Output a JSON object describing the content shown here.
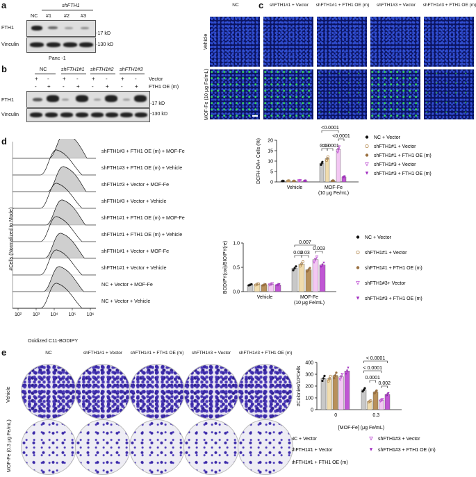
{
  "panel_a": {
    "label": "a",
    "header_shrna": "shFTH1",
    "lanes": [
      "NC",
      "#1",
      "#2",
      "#3"
    ],
    "rows": [
      "FTH1",
      "Vinculin"
    ],
    "markers": [
      "-17 kD",
      "-130 kD"
    ],
    "cell_line": "Panc -1"
  },
  "panel_b": {
    "label": "b",
    "groups": [
      "NC",
      "shFTH1#1",
      "shFTH1#2",
      "shFTH1#3"
    ],
    "vector_row": [
      "+",
      "-",
      "+",
      "-",
      "+",
      "-",
      "+",
      "-"
    ],
    "oe_row": [
      "-",
      "+",
      "-",
      "+",
      "-",
      "+",
      "-",
      "+"
    ],
    "row_labels": [
      "Vector",
      "FTH1 OE (m)"
    ],
    "rows": [
      "FTH1",
      "Vinculin"
    ],
    "markers": [
      "-17 kD",
      "-130 kD"
    ]
  },
  "panel_c": {
    "label": "c",
    "columns": [
      "NC",
      "shFTH1#1 + Vector",
      "shFTH1#1 + FTH1 OE (m)",
      "shFTH1#3 + Vector",
      "shFTH1#3 + FTH1 OE (m)"
    ],
    "rows": [
      "Vehicle",
      "MOF-Fe (10 μg Fe/mL)"
    ]
  },
  "dcfh_chart": {
    "chart_data": {
      "type": "bar",
      "categories": [
        "Vehicle",
        "MOF-Fe (10 μg Fe/mL)"
      ],
      "ylabel": "DCFH-DA+ Cells (%)",
      "ylim": [
        0,
        20
      ],
      "yticks": [
        "0",
        "5",
        "10",
        "15",
        "20"
      ],
      "series": [
        {
          "name": "NC + Vector",
          "values": [
            0.4,
            8.9
          ]
        },
        {
          "name": "shFTH1#1 + Vector",
          "values": [
            0.5,
            11.2
          ]
        },
        {
          "name": "shFTH1#1 + FTH1 OE (m)",
          "values": [
            0.4,
            0.6
          ]
        },
        {
          "name": "shFTH1#3 + Vector",
          "values": [
            0.6,
            15.6
          ]
        },
        {
          "name": "shFTH1#3 + FTH1 OE (m)",
          "values": [
            0.5,
            2.4
          ]
        }
      ],
      "annotations": [
        "<0.0001",
        "<0.0001",
        "0.13",
        "<0.0001"
      ]
    }
  },
  "panel_d": {
    "label": "d",
    "ylabel": "#Cells (Normalized to Mode)",
    "xlabel": "Oxidized C11-BODIPY",
    "xticks": [
      "10²",
      "10³",
      "10⁴",
      "10⁵",
      "10⁶"
    ],
    "tracks": [
      "shFTH1#3 + FTH1 OE (m) + MOF-Fe",
      "shFTH1#3 + FTH1 OE (m) + Vehicle",
      "shFTH1#3 + Vector + MOF-Fe",
      "shFTH1#3 + Vector + Vehicle",
      "shFTH1#1 + FTH1 OE (m) + MOF-Fe",
      "shFTH1#1 + FTH1 OE (m) + Vehicle",
      "shFTH1#1 + Vector + MOF-Fe",
      "shFTH1#1 + Vector + Vehicle",
      "NC + Vector + MOF-Fe",
      "NC + Vector + Vehicle"
    ]
  },
  "bodipy_chart": {
    "chart_data": {
      "type": "bar",
      "categories": [
        "Vehicle",
        "MOF-Fe (10 μg Fe/mL)"
      ],
      "ylabel": "BODIPY(oxi)/BIOIPY(re)",
      "ylim": [
        0,
        1.0
      ],
      "yticks": [
        "0.0",
        "0.5",
        "1.0"
      ],
      "series": [
        {
          "name": "NC + Vector",
          "values": [
            0.14,
            0.48
          ]
        },
        {
          "name": "shFTH1#1 + Vector",
          "values": [
            0.15,
            0.57
          ]
        },
        {
          "name": "shFTH1#1 + FTH1 OE (m)",
          "values": [
            0.14,
            0.45
          ]
        },
        {
          "name": "shFTH1#3+ Vector",
          "values": [
            0.15,
            0.66
          ]
        },
        {
          "name": "shFTH1#3 + FTH1 OE (m)",
          "values": [
            0.14,
            0.55
          ]
        }
      ],
      "annotations": [
        "0.007",
        "0.02",
        "0.03",
        "0.003"
      ]
    }
  },
  "panel_e": {
    "label": "e",
    "columns": [
      "NC",
      "shFTH1#1 + Vector",
      "shFTH1#1 + FTH1 OE (m)",
      "shFTH1#3 + Vector",
      "shFTH1#3 + FTH1 OE (m)"
    ],
    "rows": [
      "Vehicle",
      "MOF-Fe (0.3 μg Fe/mL)"
    ]
  },
  "colony_chart": {
    "chart_data": {
      "type": "bar",
      "categories": [
        "0",
        "0.3"
      ],
      "xlabel": "[MOF-Fe] (μg Fe/mL)",
      "ylabel": "#Colonies/10³Cells",
      "ylim": [
        0,
        400
      ],
      "yticks": [
        "0",
        "100",
        "200",
        "300",
        "400"
      ],
      "series": [
        {
          "name": "NC + Vector",
          "values": [
            265,
            168
          ]
        },
        {
          "name": "shFTH1#1 + Vector",
          "values": [
            262,
            70
          ]
        },
        {
          "name": "shFTH1#1 + FTH1 OE (m)",
          "values": [
            290,
            150
          ]
        },
        {
          "name": "shFTH1#3 + Vector",
          "values": [
            278,
            80
          ]
        },
        {
          "name": "shFTH1#3 + FTH1 OE (m)",
          "values": [
            328,
            128
          ]
        }
      ],
      "annotations": [
        "< 0.0001",
        "< 0.0001",
        "0.0001",
        "0.002"
      ]
    }
  },
  "colors": {
    "nc": "#c8c8c8",
    "sh1_vec": "#f0dcae",
    "sh1_oe": "#b8905a",
    "sh3_vec": "#f3c7f3",
    "sh3_oe": "#c056d4",
    "histo_fill": "#cfcfcf"
  }
}
